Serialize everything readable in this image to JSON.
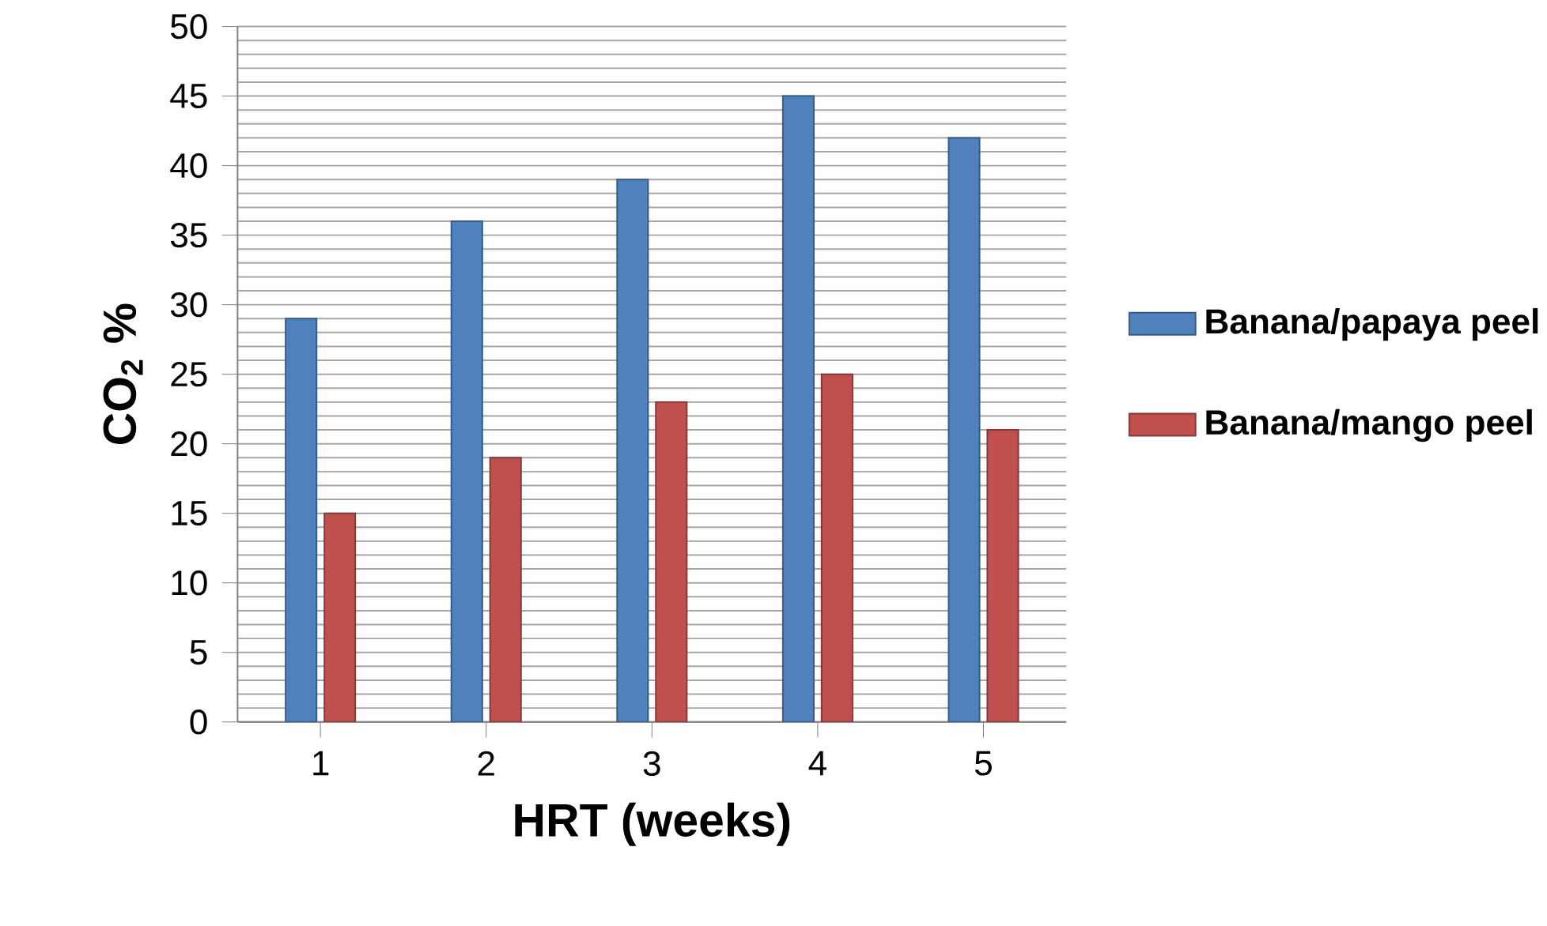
{
  "chart_data": {
    "type": "bar",
    "xlabel": "HRT (weeks)",
    "ylabel": "CO$_{2}$ %",
    "categories": [
      "1",
      "2",
      "3",
      "4",
      "5"
    ],
    "series": [
      {
        "name": "Banana/papaya peel",
        "color": "#4f81bd",
        "values": [
          29,
          36,
          39,
          45,
          42
        ]
      },
      {
        "name": "Banana/mango peel",
        "color": "#c0504d",
        "values": [
          15,
          19,
          23,
          25,
          21
        ]
      }
    ],
    "ylim": [
      0,
      50
    ],
    "yticks": [
      0,
      5,
      10,
      15,
      20,
      25,
      30,
      35,
      40,
      45,
      50
    ],
    "grid": "y",
    "legend": "right"
  }
}
